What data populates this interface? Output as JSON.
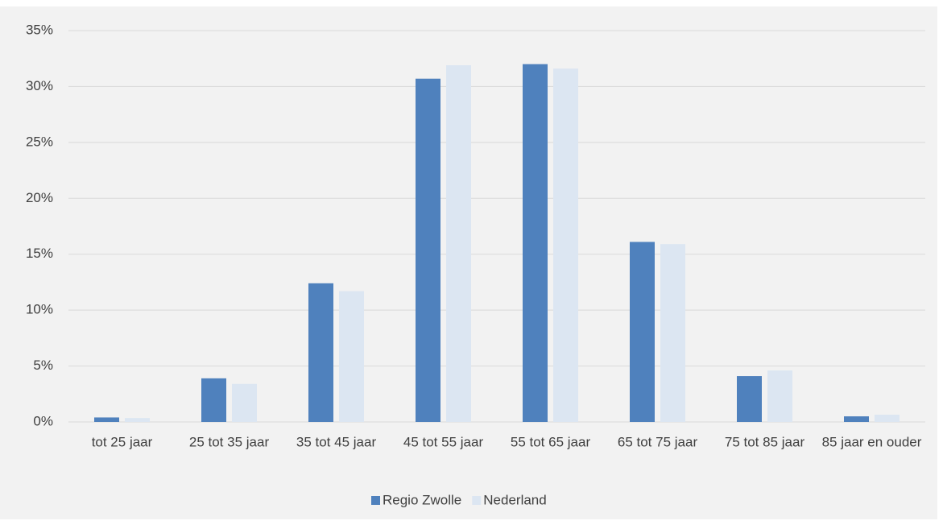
{
  "chart_data": {
    "type": "bar",
    "categories": [
      "tot 25 jaar",
      "25 tot 35 jaar",
      "35 tot 45 jaar",
      "45 tot 55 jaar",
      "55 tot 65 jaar",
      "65 tot 75 jaar",
      "75 tot 85 jaar",
      "85 jaar en ouder"
    ],
    "series": [
      {
        "name": "Regio Zwolle",
        "color": "#4f81bd",
        "values": [
          0.4,
          3.9,
          12.4,
          30.7,
          32.0,
          16.1,
          4.1,
          0.5
        ]
      },
      {
        "name": "Nederland",
        "color": "#dce6f2",
        "values": [
          0.35,
          3.4,
          11.7,
          31.9,
          31.6,
          15.9,
          4.6,
          0.65
        ]
      }
    ],
    "ylim": [
      0,
      35
    ],
    "yticks": [
      {
        "value": 0,
        "label": "0%"
      },
      {
        "value": 5,
        "label": "5%"
      },
      {
        "value": 10,
        "label": "10%"
      },
      {
        "value": 15,
        "label": "15%"
      },
      {
        "value": 20,
        "label": "20%"
      },
      {
        "value": 25,
        "label": "25%"
      },
      {
        "value": 30,
        "label": "30%"
      },
      {
        "value": 35,
        "label": "35%"
      }
    ],
    "grid": true,
    "legend": "bottom"
  }
}
